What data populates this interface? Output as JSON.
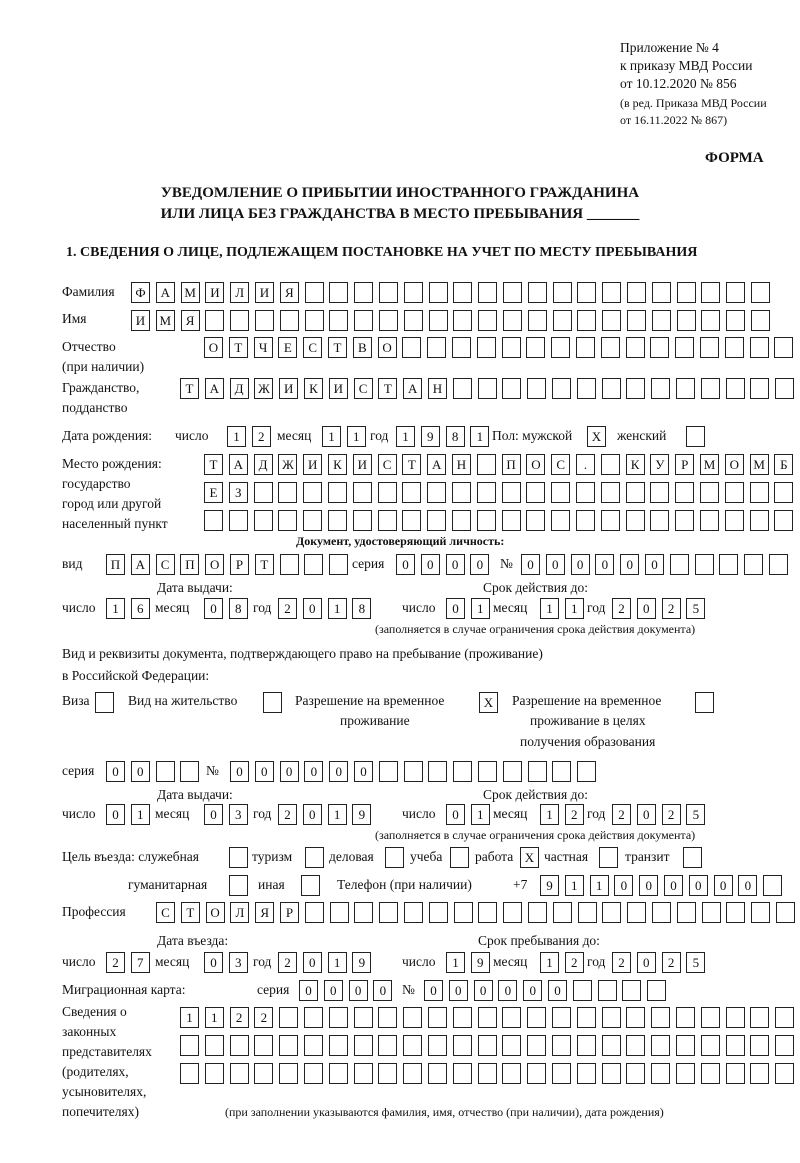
{
  "header": {
    "appendix": "Приложение № 4",
    "order": "к приказу МВД России",
    "date": "от 10.12.2020 № 856",
    "edit1": "(в ред. Приказа МВД России",
    "edit2": "от 16.11.2022 № 867)",
    "form": "ФОРМА"
  },
  "title": {
    "line1": "УВЕДОМЛЕНИЕ О ПРИБЫТИИ ИНОСТРАННОГО ГРАЖДАНИНА",
    "line2": "ИЛИ ЛИЦА БЕЗ ГРАЖДАНСТВА В МЕСТО ПРЕБЫВАНИЯ _______"
  },
  "section1": "1. СВЕДЕНИЯ О ЛИЦЕ, ПОДЛЕЖАЩЕМ ПОСТАНОВКЕ НА УЧЕТ ПО МЕСТУ ПРЕБЫВАНИЯ",
  "labels": {
    "surname": "Фамилия",
    "name": "Имя",
    "patronymic": "Отчество",
    "patronymic2": "(при наличии)",
    "citizenship": "Гражданство,",
    "citizenship2": "подданство",
    "birth_date": "Дата рождения:",
    "day": "число",
    "month": "месяц",
    "year": "год",
    "sex": "Пол: мужской",
    "female": "женский",
    "birthplace1": "Место рождения:",
    "birthplace2": "государство",
    "birthplace3": "город или другой",
    "birthplace4": "населенный пункт",
    "id_doc": "Документ, удостоверяющий личность:",
    "kind": "вид",
    "series": "серия",
    "number": "№",
    "issue_date": "Дата выдачи:",
    "valid_until": "Срок действия до:",
    "valid_note": "(заполняется в случае ограничения срока действия документа)",
    "right_doc1": "Вид и реквизиты документа, подтверждающего право на пребывание (проживание)",
    "right_doc2": "в Российской Федерации:",
    "visa": "Виза",
    "residence": "Вид на жительство",
    "trp1": "Разрешение на временное",
    "trp2": "проживание",
    "trpe1": "Разрешение на временное",
    "trpe2": "проживание в целях",
    "trpe3": "получения образования",
    "purpose": "Цель въезда: служебная",
    "tourism": "туризм",
    "business": "деловая",
    "study": "учеба",
    "work": "работа",
    "private": "частная",
    "transit": "транзит",
    "humanitarian": "гуманитарная",
    "other": "иная",
    "phone": "Телефон (при наличии)",
    "phone_prefix": "+7",
    "profession": "Профессия",
    "entry_date": "Дата въезда:",
    "stay_until": "Срок пребывания до:",
    "migration_card": "Миграционная карта:",
    "reps1": "Сведения о",
    "reps2": "законных",
    "reps3": "представителях",
    "reps4": "(родителях,",
    "reps5": "усыновителях,",
    "reps6": "попечителях)",
    "reps_note": "(при заполнении указываются фамилия, имя, отчество (при наличии), дата рождения)"
  },
  "fields": {
    "surname": "ФАМИЛИЯ",
    "name": "ИМЯ",
    "patronymic": "ОТЧЕСТВО",
    "citizenship": "ТАДЖИКИСТАН",
    "birth_day": "12",
    "birth_month": "11",
    "birth_year": "1981",
    "sex_male": "X",
    "sex_female": "",
    "birthplace1": "ТАДЖИКИСТАН ПОС. КУРМОМБ",
    "birthplace2": "ЕЗ",
    "birthplace3": "",
    "doc_kind": "ПАСПОРТ",
    "doc_series": "0000",
    "doc_number": "000000",
    "doc_issue_day": "16",
    "doc_issue_month": "08",
    "doc_issue_year": "2018",
    "doc_valid_day": "01",
    "doc_valid_month": "11",
    "doc_valid_year": "2025",
    "visa": "",
    "residence": "",
    "trp": "X",
    "trpe": "",
    "right_series": "00",
    "right_number": "000000",
    "right_issue_day": "01",
    "right_issue_month": "03",
    "right_issue_year": "2019",
    "right_valid_day": "01",
    "right_valid_month": "12",
    "right_valid_year": "2025",
    "p_service": "",
    "p_tourism": "",
    "p_business": "",
    "p_study": "",
    "p_work": "X",
    "p_private": "",
    "p_transit": "",
    "p_humanitarian": "",
    "p_other": "",
    "phone": "911000000",
    "profession": "СТОЛЯР",
    "entry_day": "27",
    "entry_month": "03",
    "entry_year": "2019",
    "stay_day": "19",
    "stay_month": "12",
    "stay_year": "2025",
    "mc_series": "0000",
    "mc_number": "000000",
    "reps1": "1122",
    "reps2": "",
    "reps3": ""
  }
}
